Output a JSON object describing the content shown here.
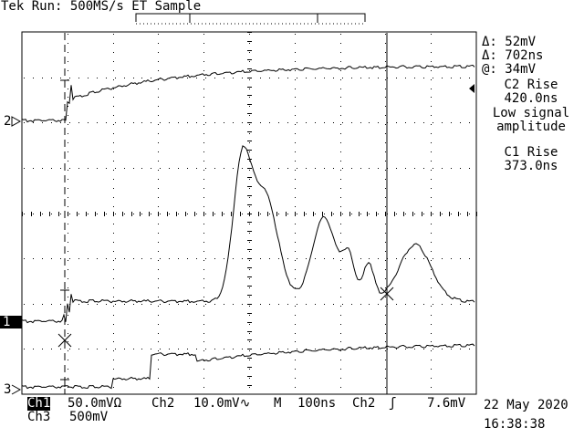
{
  "header": {
    "title": "Tek Run: 500MS/s ET Sample"
  },
  "cursor_readout": {
    "delta_v": "Δ: 52mV",
    "delta_t": "Δ: 702ns",
    "at": "@: 34mV"
  },
  "measurements": {
    "c2_rise_label": "C2 Rise",
    "c2_rise_value": "420.0ns",
    "warning_line1": "Low signal",
    "warning_line2": "amplitude",
    "c1_rise_label": "C1 Rise",
    "c1_rise_value": "373.0ns"
  },
  "channel_markers": {
    "ch2": "2",
    "ch1": "1",
    "ch3": "3"
  },
  "status": {
    "ch1_label": "Ch1",
    "ch1_scale": "50.0mVΩ",
    "ch2_label": "Ch2",
    "ch2_scale": "10.0mV∿",
    "timebase_label": "M",
    "timebase_value": "100ns",
    "trigger_source": "Ch2",
    "trigger_slope": "ʃ",
    "trigger_level": "7.6mV",
    "ch3_label": "Ch3",
    "ch3_scale": "500mV",
    "date": "22 May 2020",
    "time": "16:38:38"
  },
  "colors": {
    "trace": "#000000",
    "background": "#ffffff",
    "grid": "#000000"
  }
}
